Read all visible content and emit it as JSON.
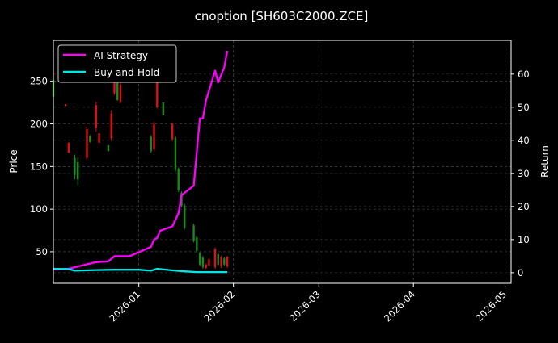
{
  "chart_data": {
    "type": "line",
    "title": "cnoption [SH603C2000.ZCE]",
    "ylabel": "Price",
    "y2label": "Return",
    "xlim": [
      "2025-12-04",
      "2026-05-03"
    ],
    "ylim": [
      13,
      298
    ],
    "y2lim": [
      -3.2,
      70.2
    ],
    "grid": true,
    "legend_placement": "top-left",
    "x_ticks": [
      "2026-01-01",
      "2026-02-01",
      "2026-03-01",
      "2026-04-01",
      "2026-05-01"
    ],
    "x_tick_labels": [
      "2026-01",
      "2026-02",
      "2026-03",
      "2026-04",
      "2026-05"
    ],
    "y_ticks": [
      50,
      100,
      150,
      200,
      250
    ],
    "y2_ticks": [
      0,
      10,
      20,
      30,
      40,
      50,
      60
    ],
    "colors": {
      "up": "#1a8a1a",
      "down": "#e01010",
      "strategy": "#ff00ff",
      "buyhold": "#00e5e5",
      "grid": "#555555"
    },
    "candles": [
      {
        "date": "2025-12-04",
        "open": 232,
        "close": 252,
        "high": 252,
        "low": 232
      },
      {
        "date": "2025-12-08",
        "open": 223,
        "close": 221,
        "high": 223,
        "low": 221
      },
      {
        "date": "2025-12-09",
        "open": 178,
        "close": 166,
        "high": 178,
        "low": 166
      },
      {
        "date": "2025-12-11",
        "open": 140,
        "close": 160,
        "high": 164,
        "low": 135
      },
      {
        "date": "2025-12-12",
        "open": 135,
        "close": 155,
        "high": 161,
        "low": 128
      },
      {
        "date": "2025-12-15",
        "open": 194,
        "close": 160,
        "high": 197,
        "low": 158
      },
      {
        "date": "2025-12-16",
        "open": 179,
        "close": 186,
        "high": 187,
        "low": 178
      },
      {
        "date": "2025-12-18",
        "open": 222,
        "close": 195,
        "high": 226,
        "low": 191
      },
      {
        "date": "2025-12-19",
        "open": 189,
        "close": 178,
        "high": 189,
        "low": 178
      },
      {
        "date": "2025-12-22",
        "open": 168,
        "close": 175,
        "high": 175,
        "low": 168
      },
      {
        "date": "2025-12-23",
        "open": 212,
        "close": 183,
        "high": 216,
        "low": 180
      },
      {
        "date": "2025-12-24",
        "open": 251,
        "close": 236,
        "high": 251,
        "low": 234
      },
      {
        "date": "2025-12-25",
        "open": 228,
        "close": 248,
        "high": 251,
        "low": 227
      },
      {
        "date": "2025-12-26",
        "open": 246,
        "close": 226,
        "high": 248,
        "low": 224
      },
      {
        "date": "2026-01-05",
        "open": 168,
        "close": 185,
        "high": 187,
        "low": 166
      },
      {
        "date": "2026-01-06",
        "open": 200,
        "close": 170,
        "high": 202,
        "low": 168
      },
      {
        "date": "2026-01-07",
        "open": 268,
        "close": 220,
        "high": 270,
        "low": 218
      },
      {
        "date": "2026-01-09",
        "open": 210,
        "close": 225,
        "high": 225,
        "low": 210
      },
      {
        "date": "2026-01-12",
        "open": 200,
        "close": 182,
        "high": 201,
        "low": 180
      },
      {
        "date": "2026-01-13",
        "open": 146,
        "close": 184,
        "high": 186,
        "low": 144
      },
      {
        "date": "2026-01-14",
        "open": 122,
        "close": 147,
        "high": 149,
        "low": 120
      },
      {
        "date": "2026-01-15",
        "open": 104,
        "close": 119,
        "high": 121,
        "low": 102
      },
      {
        "date": "2026-01-16",
        "open": 78,
        "close": 104,
        "high": 106,
        "low": 76
      },
      {
        "date": "2026-01-19",
        "open": 63,
        "close": 81,
        "high": 83,
        "low": 61
      },
      {
        "date": "2026-01-20",
        "open": 51,
        "close": 67,
        "high": 69,
        "low": 49
      },
      {
        "date": "2026-01-21",
        "open": 35,
        "close": 48,
        "high": 50,
        "low": 33
      },
      {
        "date": "2026-01-22",
        "open": 32,
        "close": 43,
        "high": 45,
        "low": 30
      },
      {
        "date": "2026-01-23",
        "open": 35,
        "close": 31,
        "high": 36,
        "low": 30
      },
      {
        "date": "2026-01-24",
        "open": 41,
        "close": 34,
        "high": 42,
        "low": 33
      },
      {
        "date": "2026-01-26",
        "open": 53,
        "close": 32,
        "high": 55,
        "low": 30
      },
      {
        "date": "2026-01-27",
        "open": 35,
        "close": 47,
        "high": 49,
        "low": 33
      },
      {
        "date": "2026-01-28",
        "open": 44,
        "close": 33,
        "high": 45,
        "low": 31
      },
      {
        "date": "2026-01-29",
        "open": 35,
        "close": 42,
        "high": 44,
        "low": 33
      },
      {
        "date": "2026-01-30",
        "open": 44,
        "close": 33,
        "high": 45,
        "low": 31
      }
    ],
    "series": [
      {
        "name": "AI Strategy",
        "axis": "right",
        "x": [
          "2025-12-04",
          "2025-12-09",
          "2025-12-18",
          "2025-12-22",
          "2025-12-24",
          "2025-12-29",
          "2026-01-05",
          "2026-01-06",
          "2026-01-07",
          "2026-01-08",
          "2026-01-12",
          "2026-01-14",
          "2026-01-15",
          "2026-01-19",
          "2026-01-21",
          "2026-01-22",
          "2026-01-23",
          "2026-01-26",
          "2026-01-27",
          "2026-01-29",
          "2026-01-30"
        ],
        "values": [
          1.0,
          1.2,
          3.2,
          3.4,
          5.0,
          5.0,
          7.8,
          10.0,
          10.5,
          12.7,
          14.0,
          18.0,
          23.4,
          26.3,
          46.6,
          46.6,
          52.0,
          61.0,
          57.5,
          62.0,
          67.0
        ]
      },
      {
        "name": "Buy-and-Hold",
        "axis": "right",
        "x": [
          "2025-12-04",
          "2025-12-09",
          "2025-12-11",
          "2025-12-18",
          "2025-12-24",
          "2026-01-01",
          "2026-01-05",
          "2026-01-07",
          "2026-01-12",
          "2026-01-16",
          "2026-01-20",
          "2026-01-30"
        ],
        "values": [
          1.2,
          1.1,
          0.6,
          0.8,
          0.9,
          0.9,
          0.6,
          1.2,
          0.7,
          0.4,
          0.2,
          0.2
        ]
      }
    ]
  }
}
